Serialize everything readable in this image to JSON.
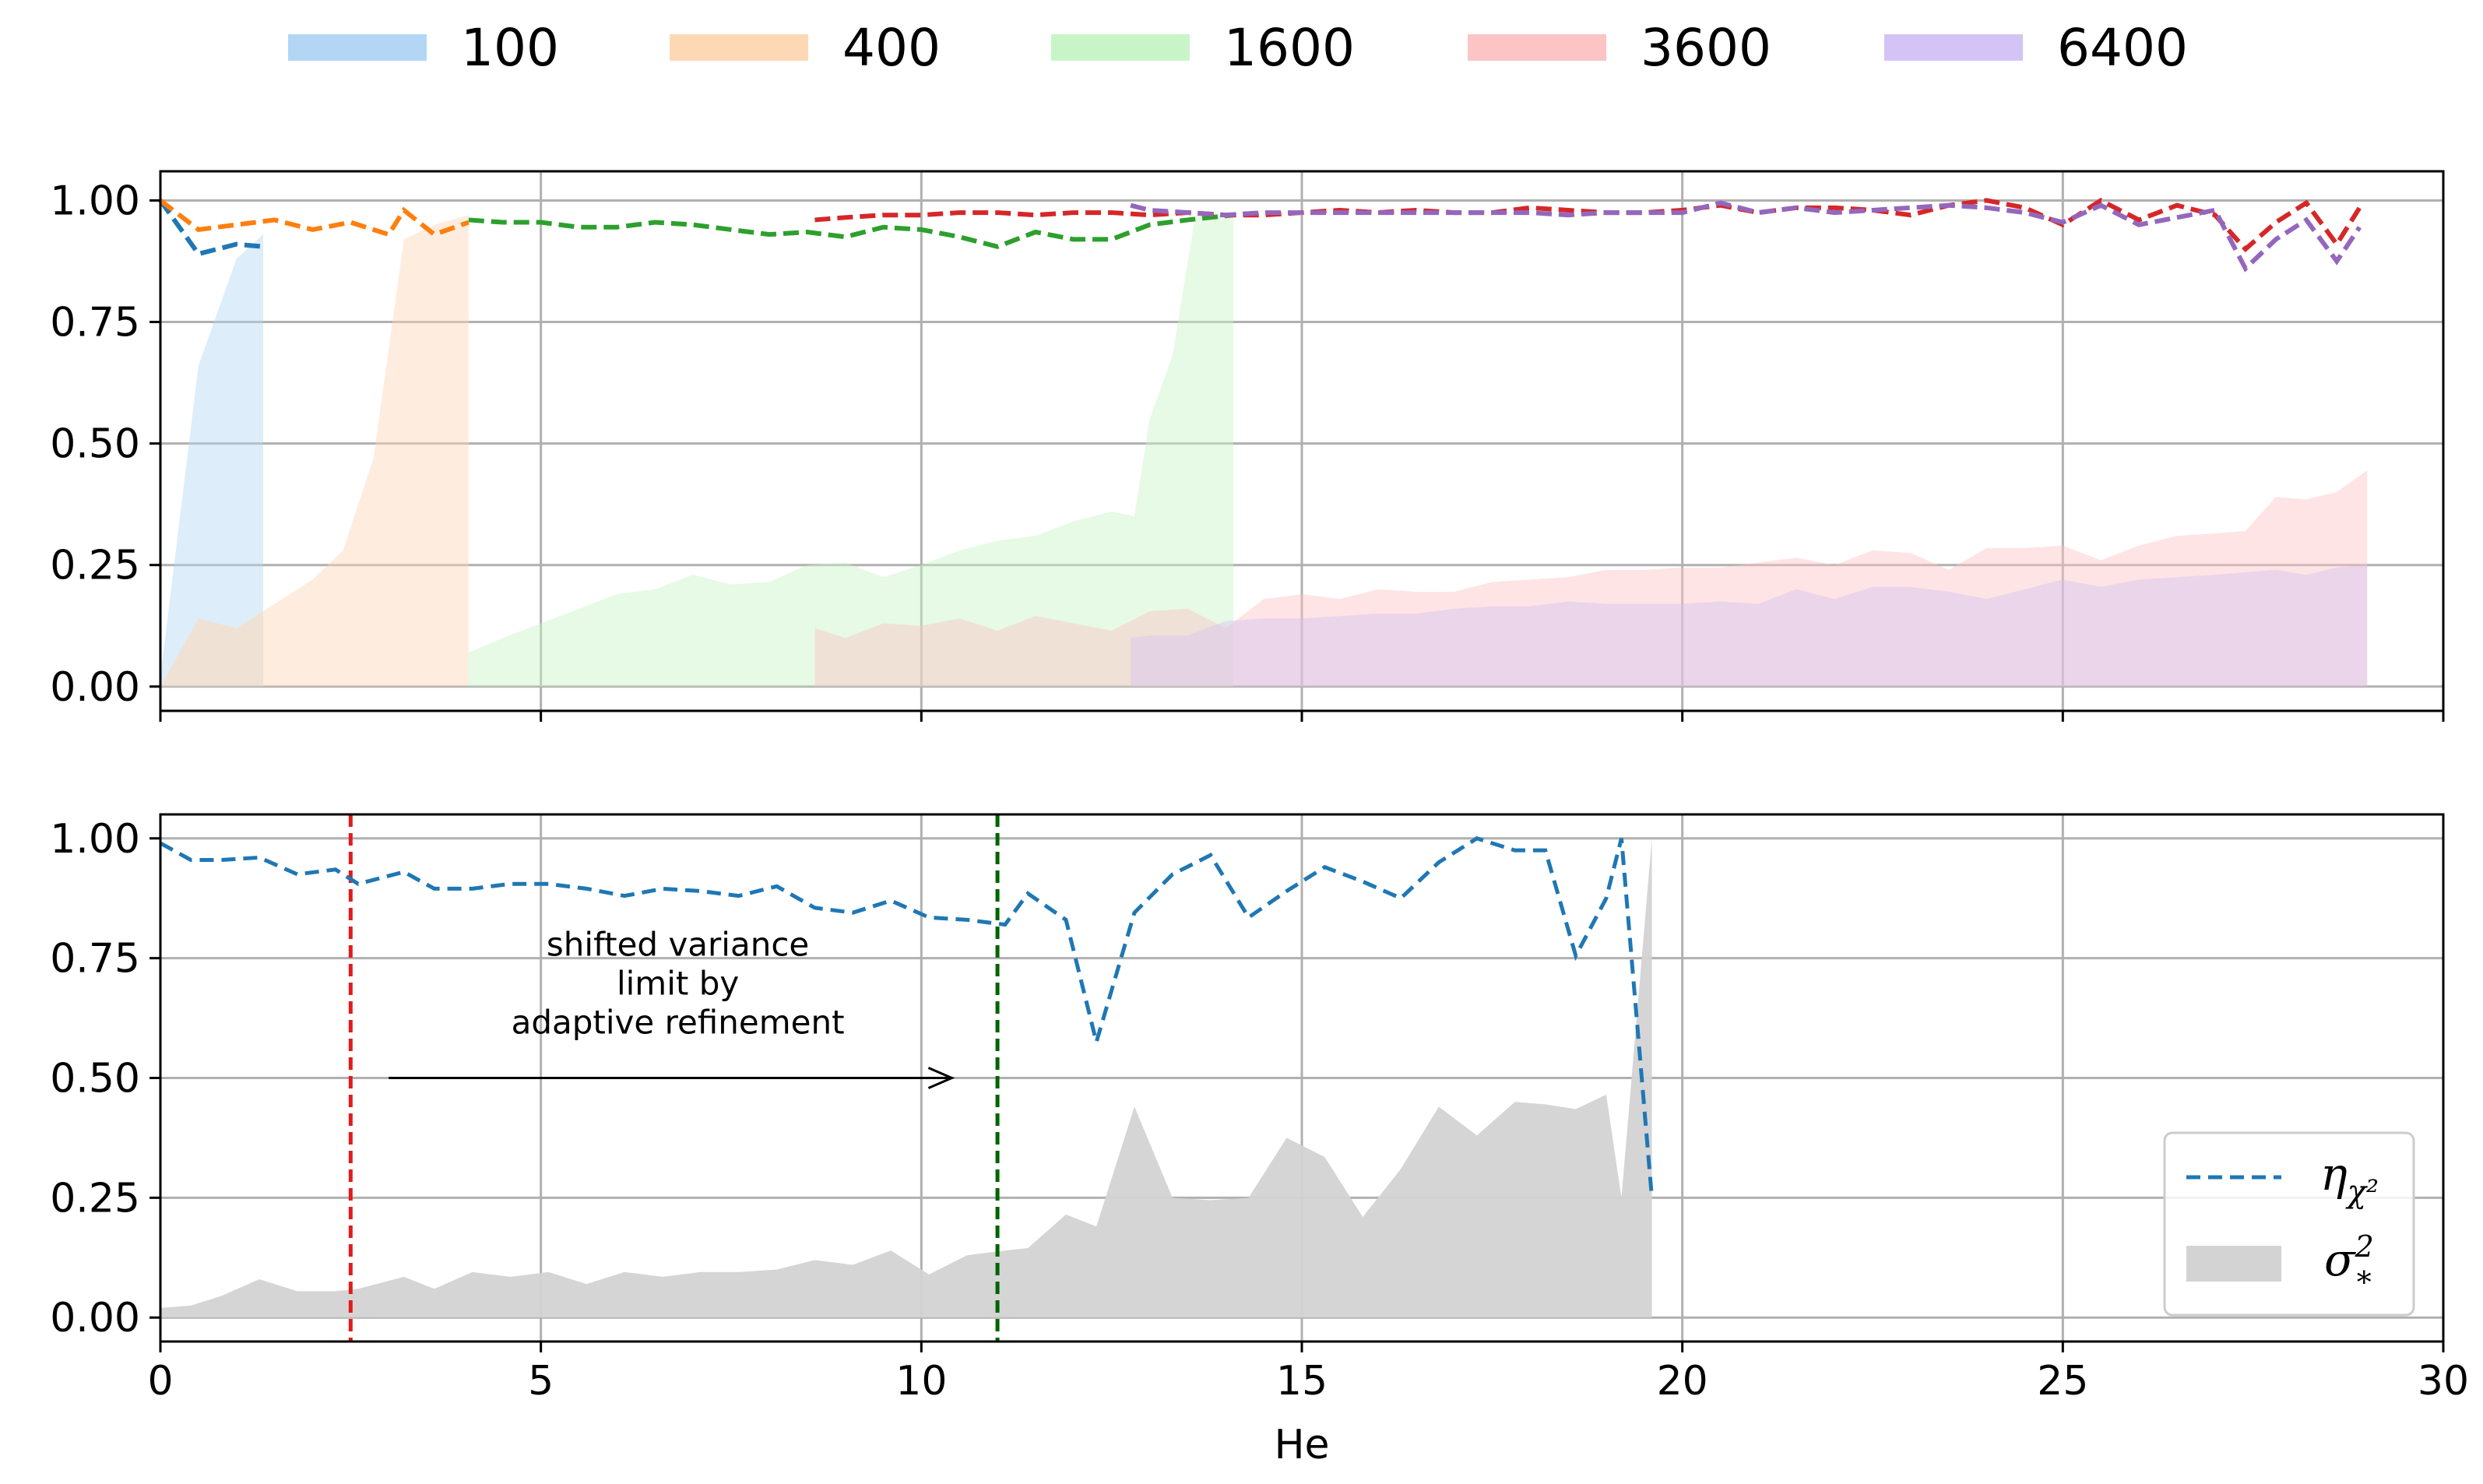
{
  "chart_data": [
    {
      "type": "line",
      "panel": "top",
      "title": "",
      "xlabel": "",
      "ylabel": "",
      "xlim": [
        0,
        30
      ],
      "ylim": [
        -0.05,
        1.06
      ],
      "grid": true,
      "yticks": [
        "0.00",
        "0.25",
        "0.50",
        "0.75",
        "1.00"
      ],
      "legend_position": "top-outside",
      "series": [
        {
          "name": "100",
          "color": "#1f77b4",
          "fill_color": "#b3d6f5",
          "line_x": [
            0,
            0.5,
            1.0,
            1.35
          ],
          "line_y": [
            1.0,
            0.89,
            0.91,
            0.905
          ],
          "area_x": [
            0,
            0.5,
            1.0,
            1.35
          ],
          "area_y": [
            0.02,
            0.66,
            0.88,
            0.93
          ],
          "area2_y": [
            0.0,
            0.14,
            0.12,
            0.155
          ]
        },
        {
          "name": "400",
          "color": "#ff7f0e",
          "fill_color": "#fdd8b5",
          "line_x": [
            0,
            0.5,
            1.0,
            1.5,
            2.0,
            2.5,
            3.0,
            3.2,
            3.6,
            4.05
          ],
          "line_y": [
            1.0,
            0.94,
            0.95,
            0.96,
            0.94,
            0.955,
            0.93,
            0.98,
            0.93,
            0.955
          ],
          "area_x": [
            1.35,
            2.0,
            2.4,
            2.8,
            3.2,
            3.6,
            4.05
          ],
          "area_y": [
            0.155,
            0.22,
            0.28,
            0.47,
            0.92,
            0.95,
            0.97
          ],
          "area2_y": [
            0.155,
            0.22,
            0.28,
            0.47,
            0.92,
            0.95,
            0.97
          ]
        },
        {
          "name": "1600",
          "color": "#2ca02c",
          "fill_color": "#c8f5c8",
          "line_x": [
            4.05,
            4.5,
            5.0,
            5.5,
            6.0,
            6.5,
            7.0,
            7.5,
            8.0,
            8.5,
            9.0,
            9.5,
            10.0,
            10.5,
            11.0,
            11.5,
            12.0,
            12.5,
            13.0,
            13.5,
            14.1
          ],
          "line_y": [
            0.96,
            0.955,
            0.955,
            0.945,
            0.945,
            0.955,
            0.95,
            0.94,
            0.93,
            0.935,
            0.925,
            0.945,
            0.94,
            0.925,
            0.905,
            0.935,
            0.92,
            0.92,
            0.95,
            0.96,
            0.97
          ],
          "area_x": [
            4.05,
            4.5,
            5.0,
            5.5,
            6.0,
            6.5,
            7.0,
            7.5,
            8.0,
            8.5,
            9.0,
            9.5,
            10.0,
            10.5,
            11.0,
            11.5,
            12.0,
            12.5,
            12.8,
            13.0,
            13.3,
            13.6,
            14.1
          ],
          "area_y": [
            0.07,
            0.1,
            0.13,
            0.16,
            0.19,
            0.2,
            0.23,
            0.21,
            0.215,
            0.25,
            0.255,
            0.225,
            0.25,
            0.28,
            0.3,
            0.31,
            0.34,
            0.36,
            0.35,
            0.55,
            0.68,
            0.97,
            0.975
          ],
          "area2_y": [
            0.07,
            0.1,
            0.13,
            0.16,
            0.19,
            0.2,
            0.23,
            0.21,
            0.215,
            0.25,
            0.255,
            0.225,
            0.25,
            0.28,
            0.3,
            0.31,
            0.34,
            0.36,
            0.35,
            0.55,
            0.68,
            0.97,
            0.975
          ]
        },
        {
          "name": "3600",
          "color": "#d62728",
          "fill_color": "#fcc4c4",
          "line_x": [
            8.6,
            9.0,
            9.5,
            10.0,
            10.5,
            11.0,
            11.5,
            12.0,
            12.5,
            13.0,
            13.5,
            14.0,
            14.5,
            15.0,
            15.5,
            16.0,
            16.5,
            17.0,
            17.5,
            18.0,
            18.5,
            19.0,
            19.5,
            20.0,
            20.5,
            21.0,
            21.5,
            22.0,
            22.5,
            23.0,
            23.5,
            24.0,
            24.5,
            25.0,
            25.5,
            26.0,
            26.5,
            27.0,
            27.4,
            27.8,
            28.2,
            28.6,
            28.9
          ],
          "line_y": [
            0.96,
            0.965,
            0.97,
            0.97,
            0.975,
            0.975,
            0.97,
            0.975,
            0.975,
            0.97,
            0.975,
            0.97,
            0.97,
            0.975,
            0.98,
            0.975,
            0.98,
            0.975,
            0.975,
            0.985,
            0.98,
            0.975,
            0.975,
            0.98,
            0.99,
            0.975,
            0.985,
            0.985,
            0.98,
            0.97,
            0.99,
            1.0,
            0.985,
            0.95,
            1.0,
            0.96,
            0.99,
            0.97,
            0.9,
            0.955,
            0.995,
            0.91,
            0.985
          ],
          "area_x": [
            8.6,
            9.0,
            9.5,
            10.0,
            10.5,
            11.0,
            11.5,
            12.0,
            12.5,
            13.0,
            13.5,
            14.0,
            14.5,
            15.0,
            15.5,
            16.0,
            16.5,
            17.0,
            17.5,
            18.0,
            18.5,
            19.0,
            19.5,
            20.0,
            20.5,
            21.0,
            21.5,
            22.0,
            22.5,
            23.0,
            23.5,
            24.0,
            24.5,
            25.0,
            25.5,
            26.0,
            26.5,
            27.0,
            27.4,
            27.8,
            28.2,
            28.6,
            29.0
          ],
          "area_y": [
            0.12,
            0.1,
            0.13,
            0.125,
            0.14,
            0.115,
            0.145,
            0.13,
            0.115,
            0.155,
            0.16,
            0.12,
            0.18,
            0.19,
            0.18,
            0.2,
            0.195,
            0.195,
            0.215,
            0.22,
            0.225,
            0.24,
            0.24,
            0.245,
            0.245,
            0.255,
            0.265,
            0.25,
            0.28,
            0.275,
            0.24,
            0.285,
            0.285,
            0.29,
            0.26,
            0.29,
            0.31,
            0.315,
            0.32,
            0.39,
            0.385,
            0.4,
            0.445
          ],
          "area2_y": [
            0.12,
            0.1,
            0.13,
            0.125,
            0.14,
            0.115,
            0.145,
            0.13,
            0.115,
            0.155,
            0.16,
            0.12,
            0.18,
            0.19,
            0.18,
            0.2,
            0.195,
            0.195,
            0.215,
            0.22,
            0.225,
            0.24,
            0.24,
            0.245,
            0.245,
            0.255,
            0.265,
            0.25,
            0.28,
            0.275,
            0.24,
            0.285,
            0.285,
            0.29,
            0.26,
            0.29,
            0.31,
            0.315,
            0.32,
            0.39,
            0.385,
            0.4,
            0.445
          ]
        },
        {
          "name": "6400",
          "color": "#9467bd",
          "fill_color": "#d4c4f5",
          "line_x": [
            12.75,
            13.0,
            13.5,
            14.0,
            14.5,
            15.0,
            15.5,
            16.0,
            16.5,
            17.0,
            17.5,
            18.0,
            18.5,
            19.0,
            19.5,
            20.0,
            20.5,
            21.0,
            21.5,
            22.0,
            22.5,
            23.0,
            23.5,
            24.0,
            24.5,
            25.0,
            25.5,
            26.0,
            26.5,
            27.0,
            27.4,
            27.8,
            28.2,
            28.6,
            28.9
          ],
          "line_y": [
            0.99,
            0.98,
            0.975,
            0.97,
            0.975,
            0.975,
            0.975,
            0.975,
            0.975,
            0.975,
            0.975,
            0.975,
            0.97,
            0.975,
            0.975,
            0.975,
            0.995,
            0.975,
            0.985,
            0.975,
            0.98,
            0.985,
            0.99,
            0.985,
            0.975,
            0.955,
            0.99,
            0.95,
            0.965,
            0.98,
            0.86,
            0.92,
            0.96,
            0.875,
            0.945
          ],
          "area_x": [
            12.75,
            13.0,
            13.5,
            14.0,
            14.5,
            15.0,
            15.5,
            16.0,
            16.5,
            17.0,
            17.5,
            18.0,
            18.5,
            19.0,
            19.5,
            20.0,
            20.5,
            21.0,
            21.5,
            22.0,
            22.5,
            23.0,
            23.5,
            24.0,
            24.5,
            25.0,
            25.5,
            26.0,
            26.5,
            27.0,
            27.4,
            27.8,
            28.2,
            28.6,
            29.0
          ],
          "area_y": [
            0.1,
            0.105,
            0.105,
            0.135,
            0.14,
            0.14,
            0.145,
            0.15,
            0.15,
            0.16,
            0.165,
            0.165,
            0.175,
            0.17,
            0.17,
            0.17,
            0.175,
            0.17,
            0.2,
            0.18,
            0.205,
            0.205,
            0.195,
            0.18,
            0.2,
            0.22,
            0.205,
            0.22,
            0.225,
            0.23,
            0.235,
            0.24,
            0.23,
            0.245,
            0.25
          ],
          "area2_y": [
            0.1,
            0.105,
            0.105,
            0.135,
            0.14,
            0.14,
            0.145,
            0.15,
            0.15,
            0.16,
            0.165,
            0.165,
            0.175,
            0.17,
            0.17,
            0.17,
            0.175,
            0.17,
            0.2,
            0.18,
            0.205,
            0.205,
            0.195,
            0.18,
            0.2,
            0.22,
            0.205,
            0.22,
            0.225,
            0.23,
            0.235,
            0.24,
            0.23,
            0.245,
            0.25
          ]
        }
      ]
    },
    {
      "type": "line",
      "panel": "bottom",
      "title": "",
      "xlabel": "He",
      "ylabel": "",
      "xlim": [
        0,
        30
      ],
      "ylim": [
        -0.05,
        1.05
      ],
      "grid": true,
      "xticks": [
        "0",
        "5",
        "10",
        "15",
        "20",
        "25",
        "30"
      ],
      "yticks": [
        "0.00",
        "0.25",
        "0.50",
        "0.75",
        "1.00"
      ],
      "legend_position": "bottom-right",
      "vlines": [
        {
          "x": 2.5,
          "color": "#e31a1c"
        },
        {
          "x": 11.0,
          "color": "#006400"
        }
      ],
      "annotation": {
        "lines": [
          "shifted variance",
          "limit by",
          "adaptive refinement"
        ],
        "arrow_from": [
          3.0,
          0.5
        ],
        "arrow_to": [
          10.4,
          0.5
        ],
        "text_x": 6.8,
        "text_y": 0.755
      },
      "series": [
        {
          "name": "η_{χ²}",
          "legend_main": "η",
          "legend_sub": "χ²",
          "color": "#1f77b4",
          "x": [
            0,
            0.4,
            0.8,
            1.3,
            1.8,
            2.3,
            2.6,
            3.2,
            3.6,
            4.1,
            4.6,
            5.1,
            5.6,
            6.1,
            6.6,
            7.1,
            7.6,
            8.1,
            8.6,
            9.1,
            9.6,
            10.1,
            10.6,
            11.1,
            11.4,
            11.9,
            12.3,
            12.8,
            13.3,
            13.8,
            14.3,
            14.8,
            15.3,
            15.8,
            16.3,
            16.8,
            17.3,
            17.8,
            18.2,
            18.6,
            19.0,
            19.2,
            19.6
          ],
          "y": [
            0.99,
            0.955,
            0.955,
            0.96,
            0.925,
            0.935,
            0.905,
            0.93,
            0.895,
            0.895,
            0.905,
            0.905,
            0.895,
            0.88,
            0.895,
            0.89,
            0.88,
            0.9,
            0.855,
            0.845,
            0.87,
            0.835,
            0.83,
            0.82,
            0.885,
            0.83,
            0.575,
            0.845,
            0.925,
            0.965,
            0.835,
            0.89,
            0.94,
            0.91,
            0.875,
            0.95,
            1.0,
            0.975,
            0.975,
            0.755,
            0.875,
            1.0,
            0.25
          ]
        },
        {
          "name": "σ²_*",
          "legend_main": "σ",
          "legend_sup": "2",
          "legend_sub": "*",
          "color": "#d3d3d3",
          "x": [
            0,
            0.4,
            0.8,
            1.3,
            1.8,
            2.3,
            2.6,
            3.2,
            3.6,
            4.1,
            4.6,
            5.1,
            5.6,
            6.1,
            6.6,
            7.1,
            7.6,
            8.1,
            8.6,
            9.1,
            9.6,
            10.1,
            10.6,
            11.1,
            11.4,
            11.9,
            12.3,
            12.8,
            13.3,
            13.8,
            14.3,
            14.8,
            15.3,
            15.8,
            16.3,
            16.8,
            17.3,
            17.8,
            18.2,
            18.6,
            19.0,
            19.2,
            19.6
          ],
          "y": [
            0.02,
            0.025,
            0.045,
            0.08,
            0.055,
            0.055,
            0.06,
            0.085,
            0.06,
            0.095,
            0.085,
            0.095,
            0.07,
            0.095,
            0.085,
            0.095,
            0.095,
            0.1,
            0.12,
            0.11,
            0.14,
            0.09,
            0.13,
            0.14,
            0.145,
            0.215,
            0.19,
            0.44,
            0.25,
            0.245,
            0.25,
            0.375,
            0.335,
            0.21,
            0.31,
            0.44,
            0.38,
            0.45,
            0.445,
            0.435,
            0.465,
            0.25,
            1.0
          ]
        }
      ]
    }
  ]
}
